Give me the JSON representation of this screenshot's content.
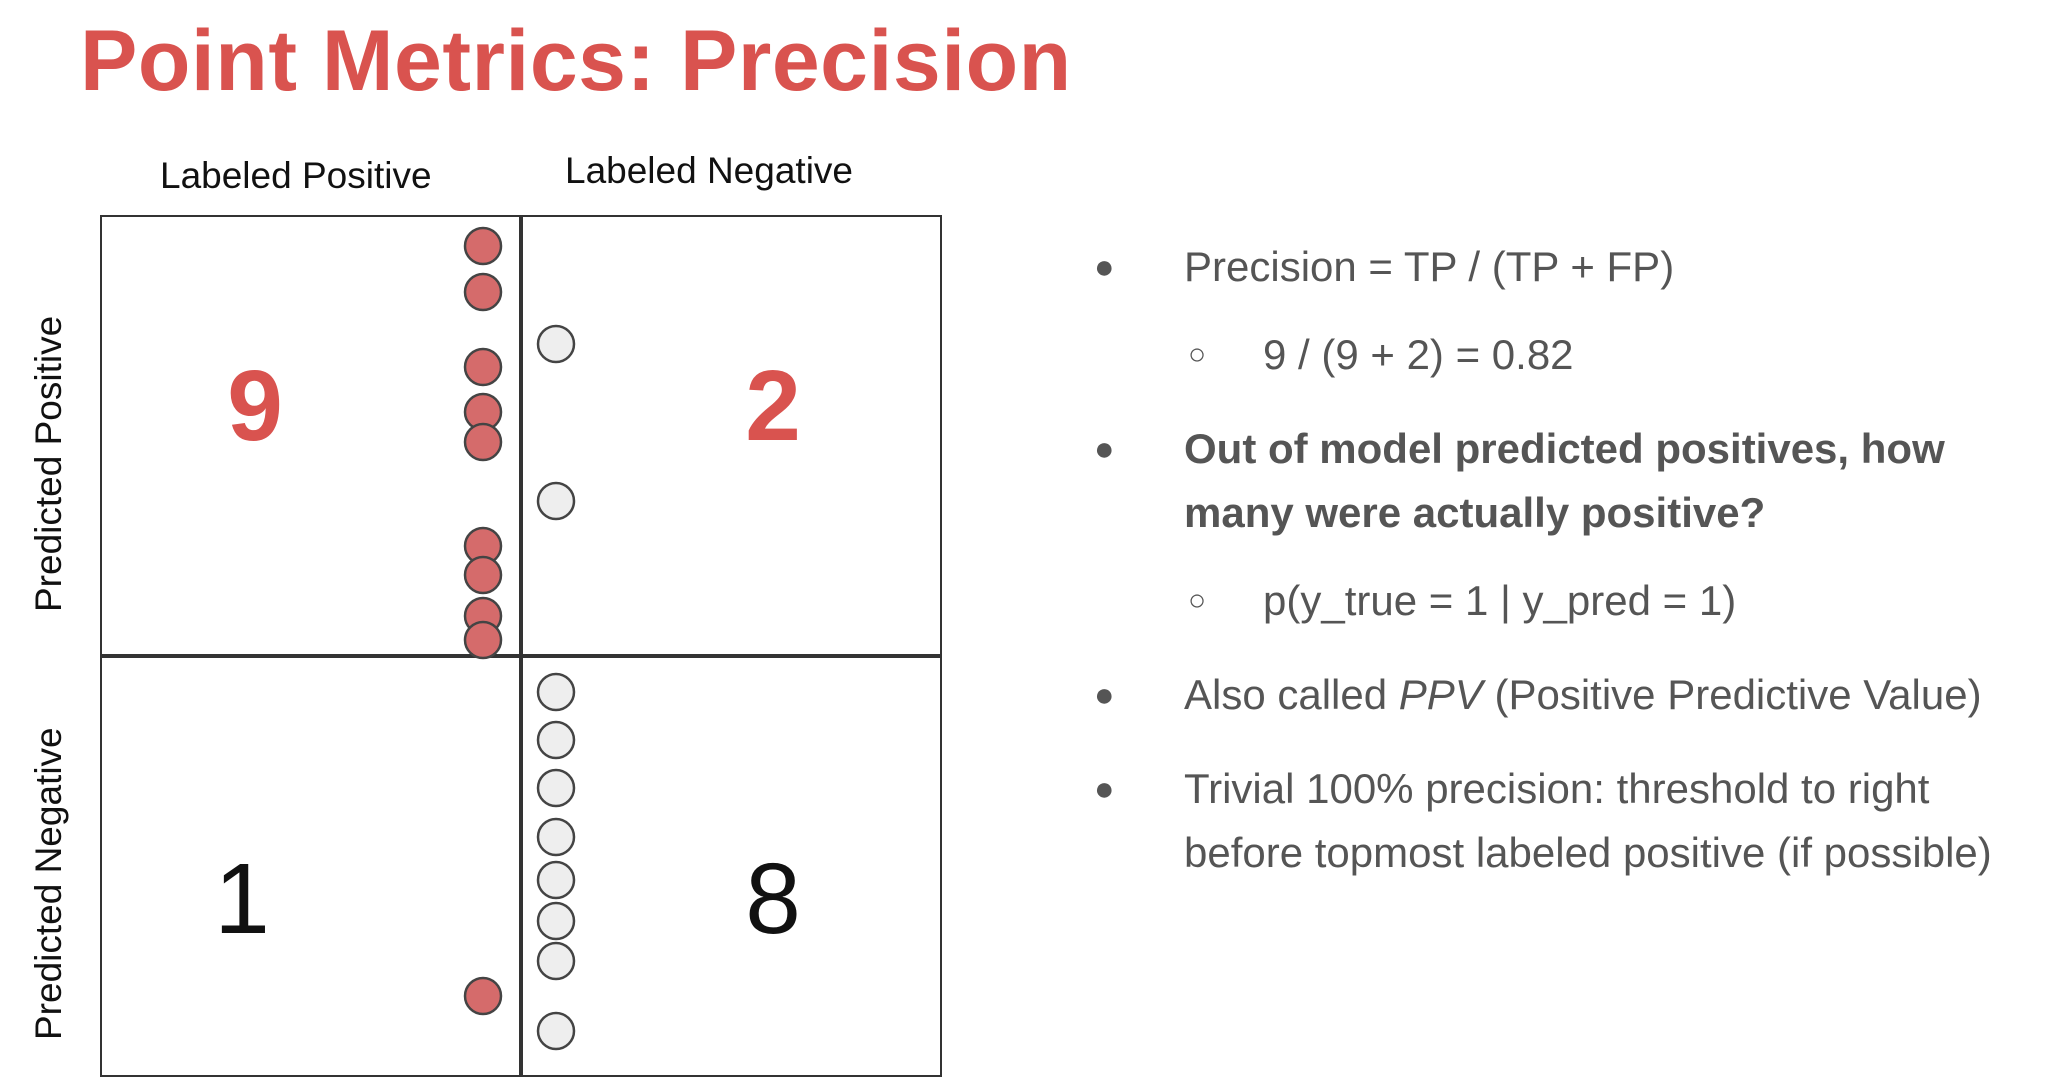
{
  "title": "Point Metrics: Precision",
  "columns": [
    "Labeled Positive",
    "Labeled Negative"
  ],
  "rows": [
    "Predicted Positive",
    "Predicted Negative"
  ],
  "cells": {
    "tp": "9",
    "fp": "2",
    "fn": "1",
    "tn": "8"
  },
  "colors": {
    "title": "#d9534f",
    "highlight_number": "#d9534f",
    "positive_dot": "#d56b6b",
    "negative_dot": "#eeeeee"
  },
  "bullets": [
    {
      "text": "Precision = TP / (TP + FP)",
      "sub": "9 / (9 + 2) = 0.82"
    },
    {
      "text": "Out of model predicted positives, how many were actually positive?",
      "sub": "p(y_true = 1 | y_pred = 1)"
    },
    {
      "text_before": "Also called ",
      "text_italic": "PPV",
      "text_after": " (Positive Predictive Value)"
    },
    {
      "text": "Trivial 100% precision: threshold to right before topmost labeled positive (if possible)"
    }
  ]
}
